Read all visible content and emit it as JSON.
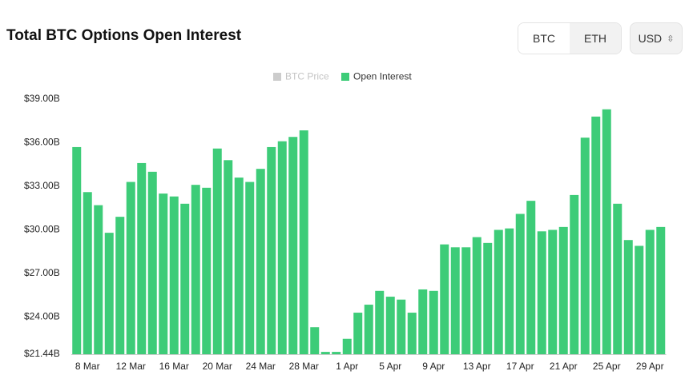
{
  "chart_data": {
    "type": "bar",
    "title": "Total BTC Options Open Interest",
    "toggle": [
      "BTC",
      "ETH"
    ],
    "currency": "USD",
    "hidden_legend": [
      {
        "name": "BTC Price",
        "color": "#cccccc"
      }
    ],
    "categories": [
      null,
      "8 Mar",
      null,
      null,
      null,
      "12 Mar",
      null,
      null,
      null,
      "16 Mar",
      null,
      null,
      null,
      "20 Mar",
      null,
      null,
      null,
      "24 Mar",
      null,
      null,
      null,
      "28 Mar",
      null,
      null,
      null,
      "1 Apr",
      null,
      null,
      null,
      "5 Apr",
      null,
      null,
      null,
      "9 Apr",
      null,
      null,
      null,
      "13 Apr",
      null,
      null,
      null,
      "17 Apr",
      null,
      null,
      null,
      "21 Apr",
      null,
      null,
      null,
      "25 Apr",
      null,
      null,
      null,
      "29 Apr",
      null
    ],
    "series": [
      {
        "name": "Open Interest",
        "color": "#3dcc78",
        "values": [
          35.7,
          32.6,
          31.7,
          29.8,
          30.9,
          33.3,
          34.6,
          34.0,
          32.5,
          32.3,
          31.8,
          33.1,
          32.9,
          35.6,
          34.8,
          33.6,
          33.3,
          34.2,
          35.7,
          36.1,
          36.4,
          36.85,
          23.3,
          21.6,
          21.6,
          22.5,
          24.3,
          24.85,
          25.8,
          25.4,
          25.2,
          24.3,
          25.9,
          25.8,
          29.0,
          28.8,
          28.8,
          29.5,
          29.1,
          30.0,
          30.1,
          31.1,
          32.0,
          29.9,
          30.0,
          30.2,
          32.4,
          36.35,
          37.8,
          38.3,
          31.8,
          29.3,
          28.9,
          30.0,
          30.2
        ]
      }
    ],
    "ylim": [
      21.44,
      39.0
    ],
    "yticks": [
      {
        "value": 21.44,
        "label": "$21.44B"
      },
      {
        "value": 24,
        "label": "$24.00B"
      },
      {
        "value": 27,
        "label": "$27.00B"
      },
      {
        "value": 30,
        "label": "$30.00B"
      },
      {
        "value": 33,
        "label": "$33.00B"
      },
      {
        "value": 36,
        "label": "$36.00B"
      },
      {
        "value": 39,
        "label": "$39.00B"
      }
    ],
    "grid": false
  }
}
